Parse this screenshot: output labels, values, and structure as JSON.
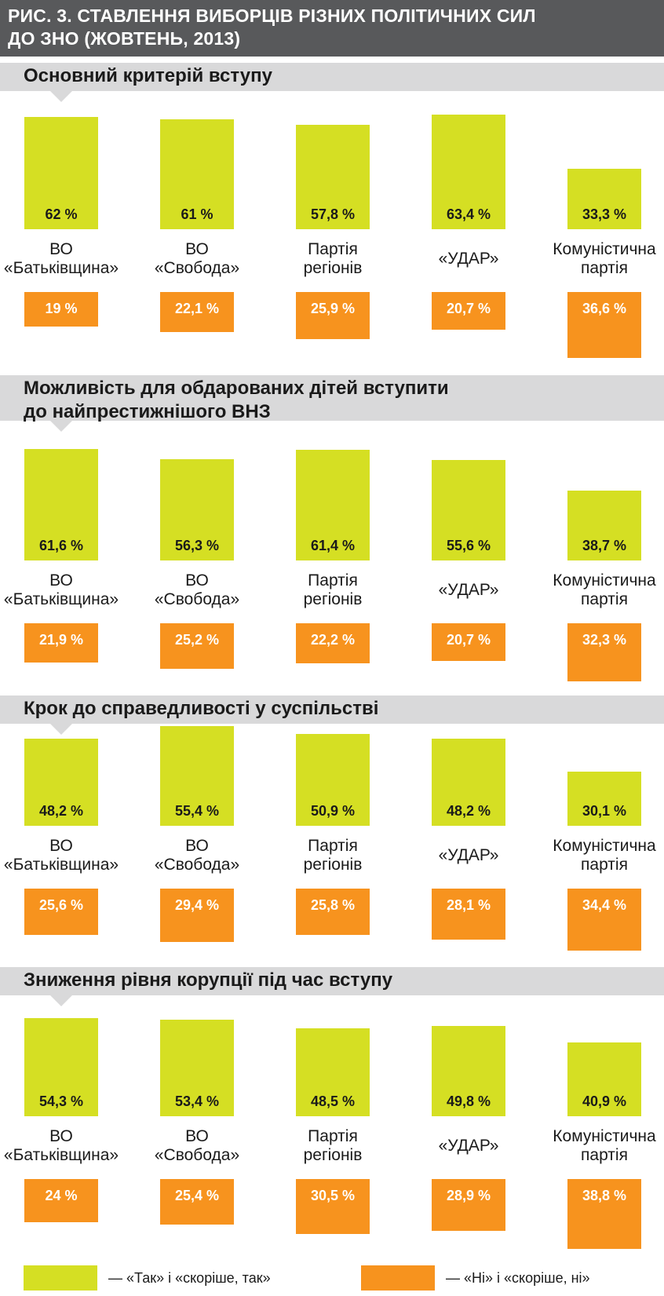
{
  "figure": {
    "title_line1": "РИС. 3. СТАВЛЕННЯ ВИБОРЦІВ РІЗНИХ ПОЛІТИЧНИХ СИЛ",
    "title_line2": "ДО ЗНО (ЖОВТЕНЬ, 2013)"
  },
  "colors": {
    "yes": "#d5df23",
    "no": "#f7931e",
    "band": "#d9d9da",
    "header": "#58595b"
  },
  "legend": {
    "yes_label": "— «Так» і «скоріше, так»",
    "no_label": "— «Ні» і «скоріше, ні»"
  },
  "chart_data": [
    {
      "type": "bar",
      "title": "Основний критерій вступу",
      "categories": [
        "ВО «Батьківщина»",
        "ВО «Свобода»",
        "Партія регіонів",
        "«УДАР»",
        "Комуністична партія"
      ],
      "category_lines": [
        [
          "ВО",
          "«Батьківщина»"
        ],
        [
          "ВО",
          "«Свобода»"
        ],
        [
          "Партія",
          "регіонів"
        ],
        [
          "«УДАР»"
        ],
        [
          "Комуністична",
          "партія"
        ]
      ],
      "series": [
        {
          "name": "«Так» і «скоріше, так»",
          "values": [
            62,
            61,
            57.8,
            63.4,
            33.3
          ],
          "labels": [
            "62 %",
            "61 %",
            "57,8 %",
            "63,4 %",
            "33,3 %"
          ]
        },
        {
          "name": "«Ні» і «скоріше, ні»",
          "values": [
            19,
            22.1,
            25.9,
            20.7,
            36.6
          ],
          "labels": [
            "19 %",
            "22,1 %",
            "25,9 %",
            "20,7 %",
            "36,6 %"
          ]
        }
      ]
    },
    {
      "type": "bar",
      "title": "Можливість для обдарованих дітей вступити до найпрестижнішого ВНЗ",
      "title_lines": [
        "Можливість для обдарованих дітей вступити",
        "до найпрестижнішого ВНЗ"
      ],
      "categories": [
        "ВО «Батьківщина»",
        "ВО «Свобода»",
        "Партія регіонів",
        "«УДАР»",
        "Комуністична партія"
      ],
      "category_lines": [
        [
          "ВО",
          "«Батьківщина»"
        ],
        [
          "ВО",
          "«Свобода»"
        ],
        [
          "Партія",
          "регіонів"
        ],
        [
          "«УДАР»"
        ],
        [
          "Комуністична",
          "партія"
        ]
      ],
      "series": [
        {
          "name": "«Так» і «скоріше, так»",
          "values": [
            61.6,
            56.3,
            61.4,
            55.6,
            38.7
          ],
          "labels": [
            "61,6 %",
            "56,3 %",
            "61,4 %",
            "55,6 %",
            "38,7 %"
          ]
        },
        {
          "name": "«Ні» і «скоріше, ні»",
          "values": [
            21.9,
            25.2,
            22.2,
            20.7,
            32.3
          ],
          "labels": [
            "21,9 %",
            "25,2 %",
            "22,2 %",
            "20,7 %",
            "32,3 %"
          ]
        }
      ]
    },
    {
      "type": "bar",
      "title": "Крок до справедливості у суспільстві",
      "categories": [
        "ВО «Батьківщина»",
        "ВО «Свобода»",
        "Партія регіонів",
        "«УДАР»",
        "Комуністична партія"
      ],
      "category_lines": [
        [
          "ВО",
          "«Батьківщина»"
        ],
        [
          "ВО",
          "«Свобода»"
        ],
        [
          "Партія",
          "регіонів"
        ],
        [
          "«УДАР»"
        ],
        [
          "Комуністична",
          "партія"
        ]
      ],
      "series": [
        {
          "name": "«Так» і «скоріше, так»",
          "values": [
            48.2,
            55.4,
            50.9,
            48.2,
            30.1
          ],
          "labels": [
            "48,2 %",
            "55,4 %",
            "50,9 %",
            "48,2 %",
            "30,1 %"
          ]
        },
        {
          "name": "«Ні» і «скоріше, ні»",
          "values": [
            25.6,
            29.4,
            25.8,
            28.1,
            34.4
          ],
          "labels": [
            "25,6 %",
            "29,4 %",
            "25,8 %",
            "28,1 %",
            "34,4 %"
          ]
        }
      ]
    },
    {
      "type": "bar",
      "title": "Зниження рівня корупції під час вступу",
      "categories": [
        "ВО «Батьківщина»",
        "ВО «Свобода»",
        "Партія регіонів",
        "«УДАР»",
        "Комуністична партія"
      ],
      "category_lines": [
        [
          "ВО",
          "«Батьківщина»"
        ],
        [
          "ВО",
          "«Свобода»"
        ],
        [
          "Партія",
          "регіонів"
        ],
        [
          "«УДАР»"
        ],
        [
          "Комуністична",
          "партія"
        ]
      ],
      "series": [
        {
          "name": "«Так» і «скоріше, так»",
          "values": [
            54.3,
            53.4,
            48.5,
            49.8,
            40.9
          ],
          "labels": [
            "54,3 %",
            "53,4 %",
            "48,5 %",
            "49,8 %",
            "40,9 %"
          ]
        },
        {
          "name": "«Ні» і «скоріше, ні»",
          "values": [
            24,
            25.4,
            30.5,
            28.9,
            38.8
          ],
          "labels": [
            "24 %",
            "25,4 %",
            "30,5 %",
            "28,9 %",
            "38,8 %"
          ]
        }
      ]
    }
  ]
}
